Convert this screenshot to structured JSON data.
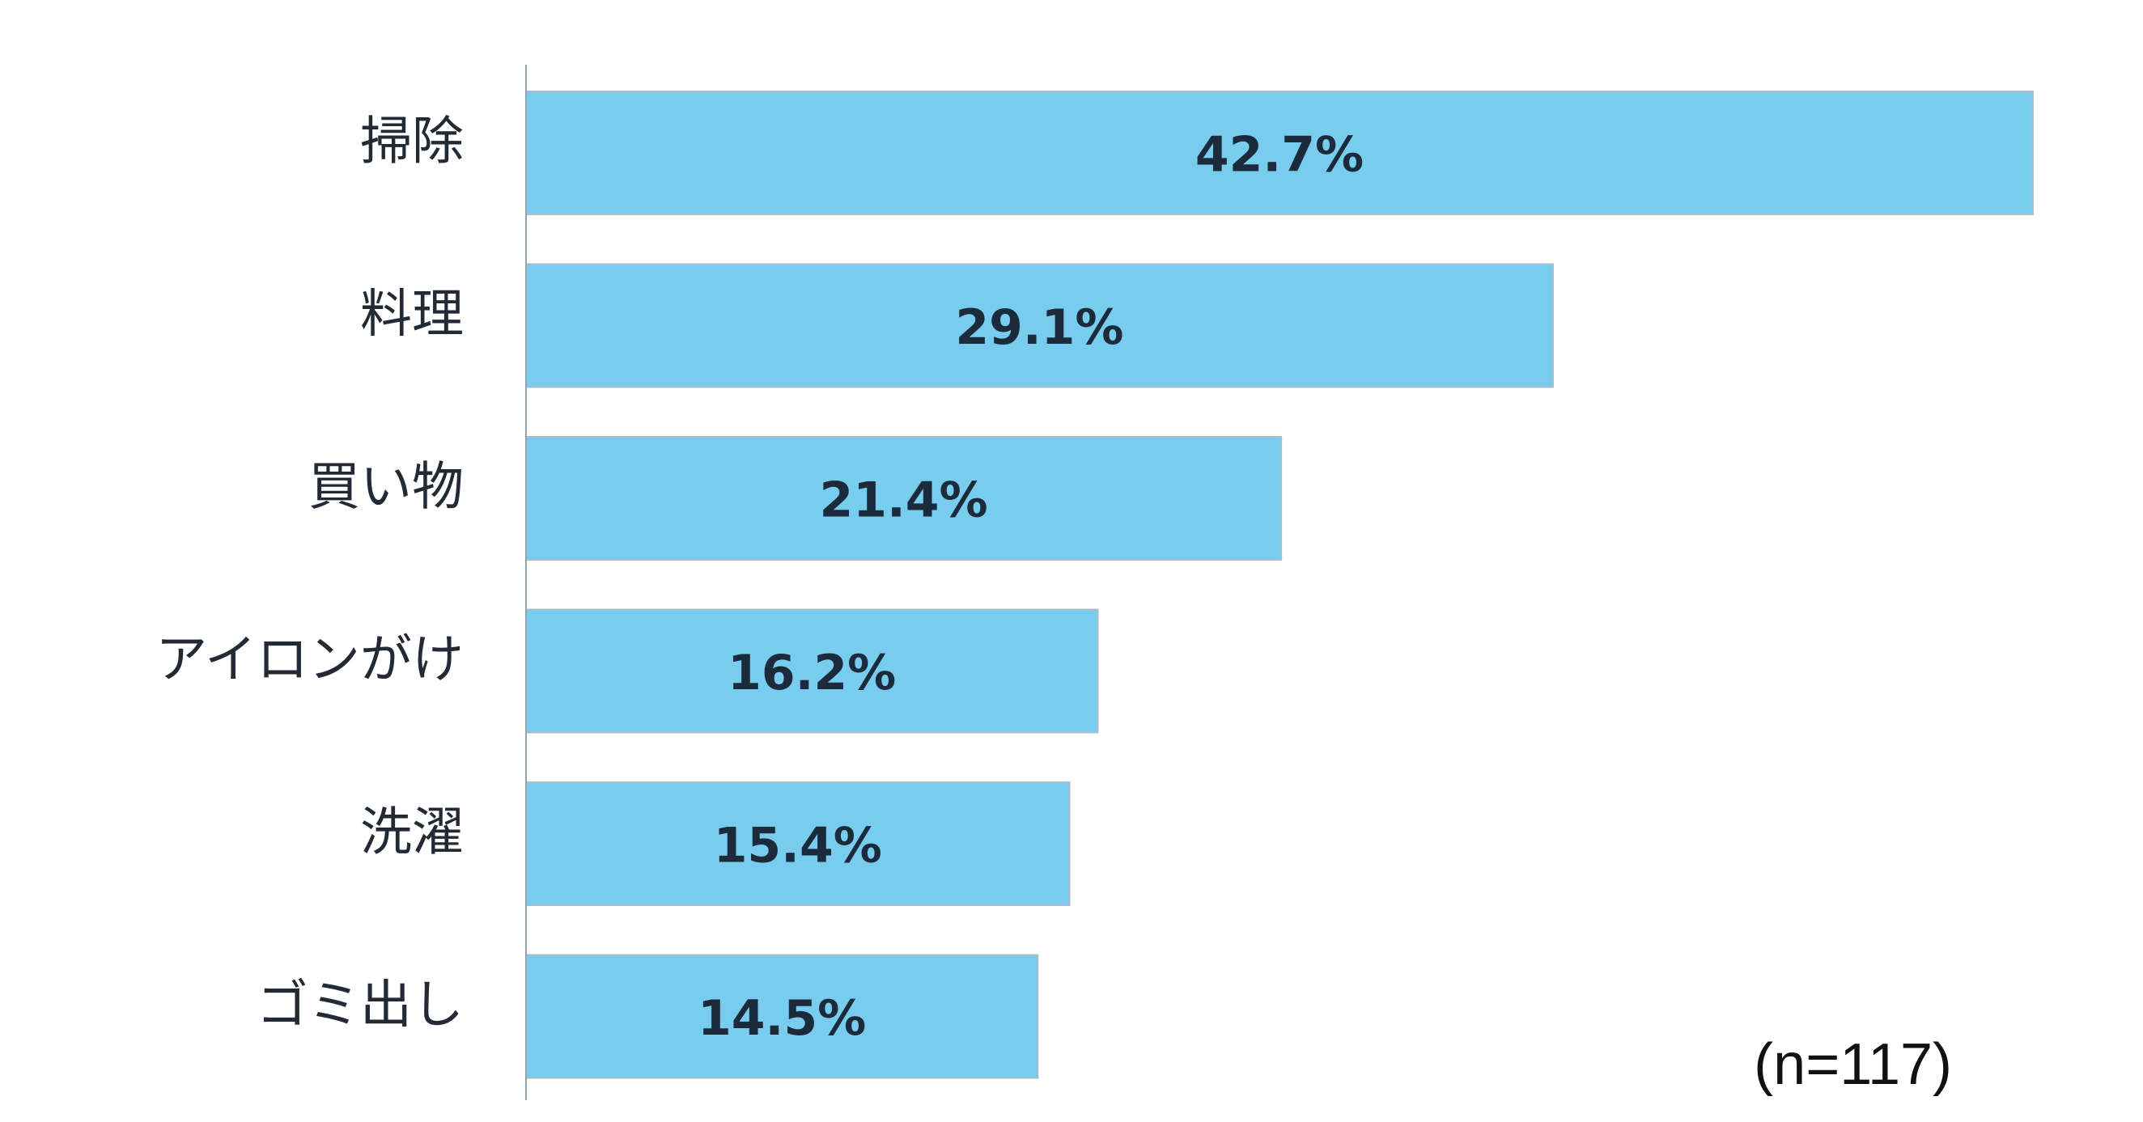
{
  "chart_data": {
    "type": "bar",
    "orientation": "horizontal",
    "categories": [
      "掃除",
      "料理",
      "買い物",
      "アイロンがけ",
      "洗濯",
      "ゴミ出し"
    ],
    "values": [
      42.7,
      29.1,
      21.4,
      16.2,
      15.4,
      14.5
    ],
    "value_labels": [
      "42.7%",
      "29.1%",
      "21.4%",
      "16.2%",
      "15.4%",
      "14.5%"
    ],
    "unit": "%",
    "title": "",
    "xlabel": "",
    "ylabel": "",
    "xlim": [
      0,
      42.7
    ],
    "grid": false,
    "legend": "none",
    "bar_color": "#78CDEF",
    "bar_border_color": "#A9BCC7",
    "axis_color": "#8FA3B3",
    "value_label_color": "#1B2B3C",
    "category_label_color": "#222A35"
  },
  "note": "(n=117)"
}
